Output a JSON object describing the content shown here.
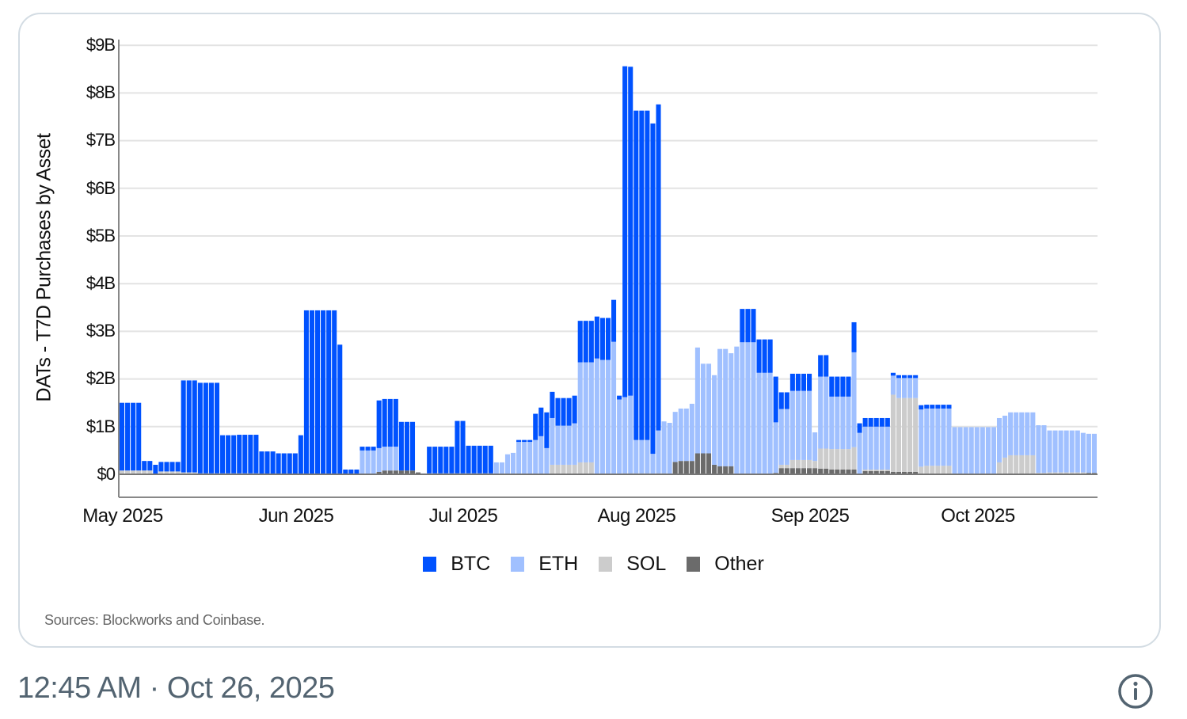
{
  "chart_data": {
    "type": "bar",
    "stacked": true,
    "title": "",
    "ylabel": "DATs - T7D Purchases by Asset",
    "xlabel": "",
    "ylim": [
      -0.5,
      9
    ],
    "yticks": [
      "$0",
      "$1B",
      "$2B",
      "$3B",
      "$4B",
      "$5B",
      "$6B",
      "$7B",
      "$8B",
      "$9B"
    ],
    "xticks": [
      "May 2025",
      "Jun 2025",
      "Jul 2025",
      "Aug 2025",
      "Sep 2025",
      "Oct 2025"
    ],
    "grid": true,
    "legend_position": "bottom",
    "unit": "USD billions",
    "series_order": [
      "Other",
      "SOL",
      "ETH",
      "BTC"
    ],
    "colors": {
      "BTC": "#0052ff",
      "ETH": "#a0c0ff",
      "SOL": "#cccccc",
      "Other": "#6b6b6b"
    },
    "x_start": "2025-05-01",
    "x_end": "2025-10-25",
    "segments": [
      {
        "days": 4,
        "BTC": 1.42,
        "ETH": 0.0,
        "SOL": 0.08,
        "Other": 0.0
      },
      {
        "days": 2,
        "BTC": 0.2,
        "ETH": 0.0,
        "SOL": 0.08,
        "Other": 0.0
      },
      {
        "days": 1,
        "BTC": 0.2,
        "ETH": 0.0,
        "SOL": 0.0,
        "Other": 0.0
      },
      {
        "days": 4,
        "BTC": 0.2,
        "ETH": 0.0,
        "SOL": 0.06,
        "Other": 0.0
      },
      {
        "days": 3,
        "BTC": 1.93,
        "ETH": 0.0,
        "SOL": 0.04,
        "Other": 0.0
      },
      {
        "days": 4,
        "BTC": 1.9,
        "ETH": 0.0,
        "SOL": 0.02,
        "Other": 0.0
      },
      {
        "days": 3,
        "BTC": 0.8,
        "ETH": 0.0,
        "SOL": 0.02,
        "Other": 0.0
      },
      {
        "days": 4,
        "BTC": 0.81,
        "ETH": 0.0,
        "SOL": 0.02,
        "Other": 0.0
      },
      {
        "days": 3,
        "BTC": 0.48,
        "ETH": 0.0,
        "SOL": 0.0,
        "Other": 0.0
      },
      {
        "days": 4,
        "BTC": 0.44,
        "ETH": 0.0,
        "SOL": 0.0,
        "Other": 0.0
      },
      {
        "days": 1,
        "BTC": 0.82,
        "ETH": 0.0,
        "SOL": 0.0,
        "Other": 0.0
      },
      {
        "days": 6,
        "BTC": 3.44,
        "ETH": 0.0,
        "SOL": 0.0,
        "Other": 0.0
      },
      {
        "days": 1,
        "BTC": 2.72,
        "ETH": 0.0,
        "SOL": 0.0,
        "Other": 0.0
      },
      {
        "days": 3,
        "BTC": 0.1,
        "ETH": 0.0,
        "SOL": 0.0,
        "Other": 0.0
      },
      {
        "days": 3,
        "BTC": 0.08,
        "ETH": 0.5,
        "SOL": 0.0,
        "Other": 0.0
      },
      {
        "days": 1,
        "BTC": 1.0,
        "ETH": 0.5,
        "SOL": 0.0,
        "Other": 0.05
      },
      {
        "days": 3,
        "BTC": 1.0,
        "ETH": 0.5,
        "SOL": 0.0,
        "Other": 0.08
      },
      {
        "days": 3,
        "BTC": 1.02,
        "ETH": 0.0,
        "SOL": 0.0,
        "Other": 0.08
      },
      {
        "days": 1,
        "BTC": 0.0,
        "ETH": 0.0,
        "SOL": 0.0,
        "Other": 0.04
      },
      {
        "days": 1,
        "BTC": 0.0,
        "ETH": 0.02,
        "SOL": 0.0,
        "Other": 0.0
      },
      {
        "days": 5,
        "BTC": 0.56,
        "ETH": 0.0,
        "SOL": 0.02,
        "Other": 0.0
      },
      {
        "days": 2,
        "BTC": 1.1,
        "ETH": 0.0,
        "SOL": 0.02,
        "Other": 0.0
      },
      {
        "days": 5,
        "BTC": 0.58,
        "ETH": 0.0,
        "SOL": 0.02,
        "Other": 0.0
      },
      {
        "days": 2,
        "BTC": 0.0,
        "ETH": 0.25,
        "SOL": 0.0,
        "Other": 0.0
      },
      {
        "days": 1,
        "BTC": 0.0,
        "ETH": 0.42,
        "SOL": 0.0,
        "Other": 0.0
      },
      {
        "days": 1,
        "BTC": 0.0,
        "ETH": 0.45,
        "SOL": 0.0,
        "Other": 0.0
      },
      {
        "days": 3,
        "BTC": 0.04,
        "ETH": 0.68,
        "SOL": 0.0,
        "Other": 0.0
      },
      {
        "days": 1,
        "BTC": 0.55,
        "ETH": 0.72,
        "SOL": 0.0,
        "Other": 0.0
      },
      {
        "days": 1,
        "BTC": 0.6,
        "ETH": 0.8,
        "SOL": 0.0,
        "Other": 0.0
      },
      {
        "days": 1,
        "BTC": 0.75,
        "ETH": 0.55,
        "SOL": 0.0,
        "Other": 0.0
      },
      {
        "days": 1,
        "BTC": 0.55,
        "ETH": 0.98,
        "SOL": 0.2,
        "Other": 0.0
      },
      {
        "days": 3,
        "BTC": 0.58,
        "ETH": 0.82,
        "SOL": 0.2,
        "Other": 0.0
      },
      {
        "days": 1,
        "BTC": 0.58,
        "ETH": 0.87,
        "SOL": 0.2,
        "Other": 0.0
      },
      {
        "days": 1,
        "BTC": 0.87,
        "ETH": 2.1,
        "SOL": 0.25,
        "Other": 0.0
      },
      {
        "days": 2,
        "BTC": 0.87,
        "ETH": 2.1,
        "SOL": 0.25,
        "Other": 0.0
      },
      {
        "days": 1,
        "BTC": 0.88,
        "ETH": 2.43,
        "SOL": 0.0,
        "Other": 0.0
      },
      {
        "days": 2,
        "BTC": 0.88,
        "ETH": 2.4,
        "SOL": 0.0,
        "Other": 0.0
      },
      {
        "days": 1,
        "BTC": 0.88,
        "ETH": 2.78,
        "SOL": 0.0,
        "Other": 0.0
      },
      {
        "days": 1,
        "BTC": 0.08,
        "ETH": 1.57,
        "SOL": 0.0,
        "Other": 0.0
      },
      {
        "days": 1,
        "BTC": 6.94,
        "ETH": 1.6,
        "SOL": 0.0,
        "Other": 0.02
      },
      {
        "days": 1,
        "BTC": 6.9,
        "ETH": 1.63,
        "SOL": 0.0,
        "Other": 0.02
      },
      {
        "days": 3,
        "BTC": 6.91,
        "ETH": 0.7,
        "SOL": 0.0,
        "Other": 0.02
      },
      {
        "days": 1,
        "BTC": 6.93,
        "ETH": 0.43,
        "SOL": 0.0,
        "Other": 0.0
      },
      {
        "days": 1,
        "BTC": 6.84,
        "ETH": 0.9,
        "SOL": 0.0,
        "Other": 0.02
      },
      {
        "days": 1,
        "BTC": 0.0,
        "ETH": 1.09,
        "SOL": 0.0,
        "Other": 0.02
      },
      {
        "days": 1,
        "BTC": 0.0,
        "ETH": 1.08,
        "SOL": 0.0,
        "Other": 0.0
      },
      {
        "days": 1,
        "BTC": 0.0,
        "ETH": 1.05,
        "SOL": 0.0,
        "Other": 0.26
      },
      {
        "days": 2,
        "BTC": 0.0,
        "ETH": 1.1,
        "SOL": 0.0,
        "Other": 0.28
      },
      {
        "days": 1,
        "BTC": 0.0,
        "ETH": 1.2,
        "SOL": 0.0,
        "Other": 0.28
      },
      {
        "days": 1,
        "BTC": 0.0,
        "ETH": 2.22,
        "SOL": 0.0,
        "Other": 0.44
      },
      {
        "days": 2,
        "BTC": 0.0,
        "ETH": 1.88,
        "SOL": 0.0,
        "Other": 0.44
      },
      {
        "days": 1,
        "BTC": 0.0,
        "ETH": 1.88,
        "SOL": 0.0,
        "Other": 0.2
      },
      {
        "days": 2,
        "BTC": 0.0,
        "ETH": 2.46,
        "SOL": 0.0,
        "Other": 0.17
      },
      {
        "days": 1,
        "BTC": 0.0,
        "ETH": 2.37,
        "SOL": 0.0,
        "Other": 0.17
      },
      {
        "days": 1,
        "BTC": 0.0,
        "ETH": 2.68,
        "SOL": 0.0,
        "Other": 0.0
      },
      {
        "days": 3,
        "BTC": 0.7,
        "ETH": 2.77,
        "SOL": 0.0,
        "Other": 0.0
      },
      {
        "days": 3,
        "BTC": 0.7,
        "ETH": 2.13,
        "SOL": 0.0,
        "Other": 0.0
      },
      {
        "days": 1,
        "BTC": 0.96,
        "ETH": 1.06,
        "SOL": 0.0,
        "Other": 0.03
      },
      {
        "days": 2,
        "BTC": 0.35,
        "ETH": 1.17,
        "SOL": 0.07,
        "Other": 0.13
      },
      {
        "days": 4,
        "BTC": 0.36,
        "ETH": 1.45,
        "SOL": 0.17,
        "Other": 0.13
      },
      {
        "days": 1,
        "BTC": 0.0,
        "ETH": 0.6,
        "SOL": 0.15,
        "Other": 0.13
      },
      {
        "days": 2,
        "BTC": 0.45,
        "ETH": 1.51,
        "SOL": 0.42,
        "Other": 0.12
      },
      {
        "days": 4,
        "BTC": 0.42,
        "ETH": 1.1,
        "SOL": 0.43,
        "Other": 0.1
      },
      {
        "days": 1,
        "BTC": 0.63,
        "ETH": 1.99,
        "SOL": 0.47,
        "Other": 0.1
      },
      {
        "days": 1,
        "BTC": 0.2,
        "ETH": 0.87,
        "SOL": 0.0,
        "Other": 0.0
      },
      {
        "days": 5,
        "BTC": 0.18,
        "ETH": 0.9,
        "SOL": 0.03,
        "Other": 0.07
      },
      {
        "days": 1,
        "BTC": 0.06,
        "ETH": 0.4,
        "SOL": 1.62,
        "Other": 0.05
      },
      {
        "days": 4,
        "BTC": 0.06,
        "ETH": 0.42,
        "SOL": 1.55,
        "Other": 0.05
      },
      {
        "days": 1,
        "BTC": 0.09,
        "ETH": 1.2,
        "SOL": 0.16,
        "Other": 0.0
      },
      {
        "days": 5,
        "BTC": 0.08,
        "ETH": 1.2,
        "SOL": 0.18,
        "Other": 0.0
      },
      {
        "days": 8,
        "BTC": 0.0,
        "ETH": 0.99,
        "SOL": 0.0,
        "Other": 0.0
      },
      {
        "days": 1,
        "BTC": 0.0,
        "ETH": 0.93,
        "SOL": 0.25,
        "Other": 0.0
      },
      {
        "days": 1,
        "BTC": 0.0,
        "ETH": 0.88,
        "SOL": 0.35,
        "Other": 0.0
      },
      {
        "days": 5,
        "BTC": 0.0,
        "ETH": 0.9,
        "SOL": 0.38,
        "Other": 0.02
      },
      {
        "days": 2,
        "BTC": 0.0,
        "ETH": 1.0,
        "SOL": 0.03,
        "Other": 0.0
      },
      {
        "days": 6,
        "BTC": 0.0,
        "ETH": 0.88,
        "SOL": 0.04,
        "Other": 0.0
      },
      {
        "days": 1,
        "BTC": 0.0,
        "ETH": 0.83,
        "SOL": 0.04,
        "Other": 0.0
      },
      {
        "days": 2,
        "BTC": 0.0,
        "ETH": 0.82,
        "SOL": 0.0,
        "Other": 0.03
      }
    ]
  },
  "chart": {
    "ylabel": "DATs - T7D Purchases by Asset",
    "yticks": [
      "$0",
      "$1B",
      "$2B",
      "$3B",
      "$4B",
      "$5B",
      "$6B",
      "$7B",
      "$8B",
      "$9B"
    ],
    "xticks": [
      "May 2025",
      "Jun 2025",
      "Jul 2025",
      "Aug 2025",
      "Sep 2025",
      "Oct 2025"
    ],
    "legend": [
      {
        "label": "BTC",
        "color": "#0052ff"
      },
      {
        "label": "ETH",
        "color": "#a0c0ff"
      },
      {
        "label": "SOL",
        "color": "#cccccc"
      },
      {
        "label": "Other",
        "color": "#6b6b6b"
      }
    ],
    "source": "Sources: Blockworks and Coinbase."
  },
  "post": {
    "timestamp": "12:45 AM · Oct 26, 2025",
    "info_icon": "info-circle-icon"
  }
}
